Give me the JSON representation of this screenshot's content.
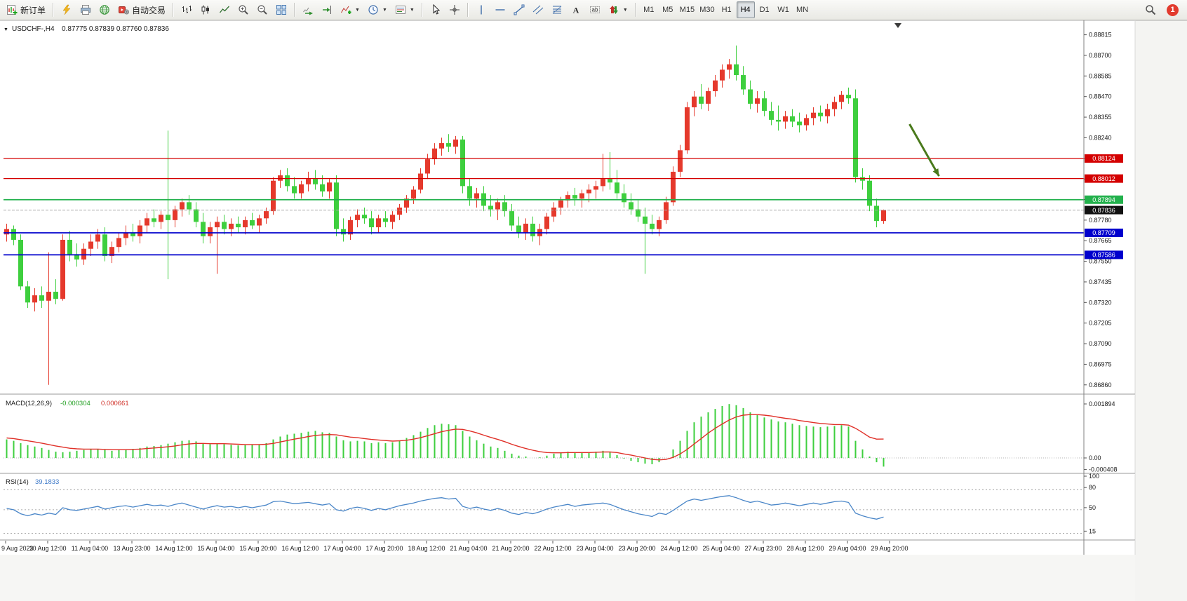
{
  "toolbar": {
    "new_order_label": "新订单",
    "autotrading_label": "自动交易",
    "timeframes": [
      "M1",
      "M5",
      "M15",
      "M30",
      "H1",
      "H4",
      "D1",
      "W1",
      "MN"
    ],
    "active_timeframe": "H4",
    "notification_count": "1",
    "icons": [
      "new-order",
      "metaeditor",
      "print",
      "refresh",
      "autotrading",
      "bar-chart-mode",
      "candlestick-mode",
      "line-chart-mode",
      "zoom-in",
      "zoom-out",
      "tile-windows",
      "auto-scroll",
      "chart-shift",
      "indicators",
      "periods",
      "templates",
      "cursor",
      "crosshair",
      "vertical-line",
      "horizontal-line",
      "trendline",
      "channel",
      "fibonacci",
      "text",
      "text-label",
      "arrows",
      "search",
      "notification"
    ]
  },
  "chart_data": {
    "type": "candlestick",
    "title": "USDCHF-,H4",
    "ohlc_display": "0.87775 0.87839 0.87760 0.87836",
    "current_price": "0.87836",
    "colors": {
      "bull": "#e5392c",
      "bear": "#3ecf3e",
      "macd_histogram": "#3ecf3e",
      "macd_signal": "#e03028",
      "rsi_line": "#4a86c8",
      "resistance": "#d40000",
      "support_green": "#22b14c",
      "support_blue": "#0000cd"
    },
    "price_range": [
      0.8682,
      0.8888
    ],
    "price_ticks": [
      "0.88815",
      "0.88700",
      "0.88585",
      "0.88470",
      "0.88355",
      "0.88240",
      "0.88125",
      "0.88010",
      "0.87895",
      "0.87780",
      "0.87665",
      "0.87550",
      "0.87435",
      "0.87320",
      "0.87205",
      "0.87090",
      "0.86975",
      "0.86860"
    ],
    "hlines": [
      {
        "price": 0.88124,
        "label": "0.88124",
        "color": "#d40000",
        "width": 1.2
      },
      {
        "price": 0.88012,
        "label": "0.88012",
        "color": "#d40000",
        "width": 1.2
      },
      {
        "price": 0.87894,
        "label": "0.87894",
        "color": "#22b14c",
        "width": 1.8
      },
      {
        "price": 0.87709,
        "label": "0.87709",
        "color": "#0000cd",
        "width": 1.8
      },
      {
        "price": 0.87586,
        "label": "0.87586",
        "color": "#0000cd",
        "width": 1.8
      }
    ],
    "label_every": 6,
    "time_labels": [
      "9 Aug 2023",
      "10 Aug 12:00",
      "11 Aug 04:00",
      "13 Aug 23:00",
      "14 Aug 12:00",
      "15 Aug 04:00",
      "15 Aug 20:00",
      "16 Aug 12:00",
      "17 Aug 04:00",
      "17 Aug 20:00",
      "18 Aug 12:00",
      "21 Aug 04:00",
      "21 Aug 20:00",
      "22 Aug 12:00",
      "23 Aug 04:00",
      "23 Aug 20:00",
      "24 Aug 12:00",
      "25 Aug 04:00",
      "27 Aug 23:00",
      "28 Aug 12:00",
      "29 Aug 04:00",
      "29 Aug 20:00"
    ],
    "candles": [
      [
        0.877,
        0.8776,
        0.8766,
        0.8773
      ],
      [
        0.8773,
        0.8775,
        0.8764,
        0.8767
      ],
      [
        0.8767,
        0.877,
        0.8739,
        0.8741
      ],
      [
        0.8741,
        0.8744,
        0.8729,
        0.8732
      ],
      [
        0.8732,
        0.874,
        0.8727,
        0.8736
      ],
      [
        0.8736,
        0.8741,
        0.8729,
        0.8733
      ],
      [
        0.8733,
        0.876,
        0.8686,
        0.8738
      ],
      [
        0.8738,
        0.8745,
        0.8731,
        0.8734
      ],
      [
        0.8734,
        0.877,
        0.8733,
        0.8767
      ],
      [
        0.8767,
        0.8772,
        0.8755,
        0.8759
      ],
      [
        0.8759,
        0.8765,
        0.8752,
        0.8756
      ],
      [
        0.8756,
        0.8765,
        0.8753,
        0.8762
      ],
      [
        0.8762,
        0.877,
        0.8758,
        0.8766
      ],
      [
        0.8766,
        0.8773,
        0.8762,
        0.877
      ],
      [
        0.877,
        0.8774,
        0.8755,
        0.8758
      ],
      [
        0.8758,
        0.8766,
        0.8754,
        0.8763
      ],
      [
        0.8763,
        0.8771,
        0.876,
        0.8768
      ],
      [
        0.8768,
        0.8775,
        0.8764,
        0.8771
      ],
      [
        0.8771,
        0.8776,
        0.8766,
        0.8769
      ],
      [
        0.8769,
        0.8778,
        0.8765,
        0.8775
      ],
      [
        0.8775,
        0.8782,
        0.8771,
        0.8779
      ],
      [
        0.8779,
        0.8784,
        0.8774,
        0.8777
      ],
      [
        0.8777,
        0.8783,
        0.8773,
        0.8781
      ],
      [
        0.8781,
        0.8828,
        0.8745,
        0.8778
      ],
      [
        0.8778,
        0.8786,
        0.8774,
        0.8784
      ],
      [
        0.8784,
        0.879,
        0.878,
        0.8788
      ],
      [
        0.8788,
        0.8792,
        0.8781,
        0.8784
      ],
      [
        0.8784,
        0.8788,
        0.8774,
        0.8777
      ],
      [
        0.8777,
        0.8782,
        0.8765,
        0.8769
      ],
      [
        0.8769,
        0.8777,
        0.8765,
        0.8774
      ],
      [
        0.8774,
        0.878,
        0.8748,
        0.8777
      ],
      [
        0.8777,
        0.8781,
        0.877,
        0.8773
      ],
      [
        0.8773,
        0.8779,
        0.8769,
        0.8776
      ],
      [
        0.8776,
        0.878,
        0.8771,
        0.8774
      ],
      [
        0.8774,
        0.878,
        0.877,
        0.8778
      ],
      [
        0.8778,
        0.8782,
        0.8773,
        0.8775
      ],
      [
        0.8775,
        0.8781,
        0.8771,
        0.8779
      ],
      [
        0.8779,
        0.8785,
        0.8776,
        0.8783
      ],
      [
        0.8783,
        0.8802,
        0.8781,
        0.88
      ],
      [
        0.88,
        0.8806,
        0.8796,
        0.8803
      ],
      [
        0.8803,
        0.8807,
        0.8794,
        0.8797
      ],
      [
        0.8797,
        0.8802,
        0.879,
        0.8793
      ],
      [
        0.8793,
        0.88,
        0.879,
        0.8798
      ],
      [
        0.8798,
        0.8805,
        0.8794,
        0.8801
      ],
      [
        0.8801,
        0.8806,
        0.8795,
        0.8798
      ],
      [
        0.8798,
        0.8803,
        0.8791,
        0.8794
      ],
      [
        0.8794,
        0.8801,
        0.879,
        0.8799
      ],
      [
        0.8799,
        0.8803,
        0.8769,
        0.8773
      ],
      [
        0.8773,
        0.8779,
        0.8766,
        0.877
      ],
      [
        0.877,
        0.878,
        0.8767,
        0.8778
      ],
      [
        0.8778,
        0.8784,
        0.8774,
        0.8781
      ],
      [
        0.8781,
        0.8785,
        0.8776,
        0.8779
      ],
      [
        0.8779,
        0.8783,
        0.877,
        0.8774
      ],
      [
        0.8774,
        0.8781,
        0.8771,
        0.8779
      ],
      [
        0.8779,
        0.8783,
        0.8774,
        0.8777
      ],
      [
        0.8777,
        0.8783,
        0.8773,
        0.8781
      ],
      [
        0.8781,
        0.8787,
        0.8778,
        0.8785
      ],
      [
        0.8785,
        0.8792,
        0.8782,
        0.879
      ],
      [
        0.879,
        0.8797,
        0.8787,
        0.8795
      ],
      [
        0.8795,
        0.8807,
        0.8793,
        0.8804
      ],
      [
        0.8804,
        0.8815,
        0.8801,
        0.8812
      ],
      [
        0.8812,
        0.8821,
        0.8809,
        0.8818
      ],
      [
        0.8818,
        0.8824,
        0.8814,
        0.8821
      ],
      [
        0.8821,
        0.8826,
        0.8816,
        0.8819
      ],
      [
        0.8819,
        0.8825,
        0.8815,
        0.8823
      ],
      [
        0.8823,
        0.8825,
        0.8793,
        0.8797
      ],
      [
        0.8797,
        0.8801,
        0.8786,
        0.879
      ],
      [
        0.879,
        0.8796,
        0.8785,
        0.8793
      ],
      [
        0.8793,
        0.8797,
        0.8783,
        0.8786
      ],
      [
        0.8786,
        0.8792,
        0.878,
        0.8784
      ],
      [
        0.8784,
        0.879,
        0.8778,
        0.8788
      ],
      [
        0.8788,
        0.8792,
        0.878,
        0.8783
      ],
      [
        0.8783,
        0.8787,
        0.8772,
        0.8775
      ],
      [
        0.8775,
        0.878,
        0.8768,
        0.8771
      ],
      [
        0.8771,
        0.8779,
        0.8767,
        0.8776
      ],
      [
        0.8776,
        0.878,
        0.8766,
        0.8769
      ],
      [
        0.8769,
        0.8776,
        0.8764,
        0.8773
      ],
      [
        0.8773,
        0.8782,
        0.877,
        0.878
      ],
      [
        0.878,
        0.8788,
        0.8777,
        0.8785
      ],
      [
        0.8785,
        0.8791,
        0.8781,
        0.8789
      ],
      [
        0.8789,
        0.8794,
        0.8785,
        0.8792
      ],
      [
        0.8792,
        0.8796,
        0.8786,
        0.879
      ],
      [
        0.879,
        0.8795,
        0.8785,
        0.8793
      ],
      [
        0.8793,
        0.8798,
        0.8788,
        0.8795
      ],
      [
        0.8795,
        0.88,
        0.879,
        0.8797
      ],
      [
        0.8797,
        0.8815,
        0.8794,
        0.8801
      ],
      [
        0.8801,
        0.8816,
        0.8795,
        0.8799
      ],
      [
        0.8799,
        0.8806,
        0.879,
        0.8793
      ],
      [
        0.8793,
        0.8798,
        0.8785,
        0.8788
      ],
      [
        0.8788,
        0.8793,
        0.8781,
        0.8784
      ],
      [
        0.8784,
        0.8789,
        0.8777,
        0.878
      ],
      [
        0.878,
        0.8785,
        0.8748,
        0.8776
      ],
      [
        0.8776,
        0.8781,
        0.877,
        0.8773
      ],
      [
        0.8773,
        0.878,
        0.8769,
        0.8778
      ],
      [
        0.8778,
        0.8791,
        0.8776,
        0.8788
      ],
      [
        0.8788,
        0.8808,
        0.8786,
        0.8805
      ],
      [
        0.8805,
        0.882,
        0.8802,
        0.8817
      ],
      [
        0.8817,
        0.8844,
        0.8815,
        0.8841
      ],
      [
        0.8841,
        0.885,
        0.8836,
        0.8847
      ],
      [
        0.8847,
        0.8854,
        0.884,
        0.8843
      ],
      [
        0.8843,
        0.8852,
        0.8839,
        0.885
      ],
      [
        0.885,
        0.8859,
        0.8847,
        0.8856
      ],
      [
        0.8856,
        0.8865,
        0.8852,
        0.8862
      ],
      [
        0.8862,
        0.8868,
        0.8857,
        0.8865
      ],
      [
        0.8865,
        0.88755,
        0.8856,
        0.8859
      ],
      [
        0.8859,
        0.8864,
        0.8848,
        0.8851
      ],
      [
        0.8851,
        0.8856,
        0.884,
        0.8843
      ],
      [
        0.8843,
        0.885,
        0.8838,
        0.8846
      ],
      [
        0.8846,
        0.885,
        0.8836,
        0.8839
      ],
      [
        0.8839,
        0.8844,
        0.8831,
        0.8834
      ],
      [
        0.8834,
        0.8842,
        0.8828,
        0.8833
      ],
      [
        0.8833,
        0.8839,
        0.8829,
        0.8836
      ],
      [
        0.8836,
        0.884,
        0.883,
        0.8833
      ],
      [
        0.8833,
        0.8838,
        0.8827,
        0.8831
      ],
      [
        0.8831,
        0.8837,
        0.8828,
        0.8835
      ],
      [
        0.8835,
        0.8841,
        0.8831,
        0.8838
      ],
      [
        0.8838,
        0.8842,
        0.8833,
        0.8836
      ],
      [
        0.8836,
        0.8843,
        0.8832,
        0.884
      ],
      [
        0.884,
        0.8847,
        0.8836,
        0.8844
      ],
      [
        0.8844,
        0.885,
        0.884,
        0.8848
      ],
      [
        0.8848,
        0.8852,
        0.8843,
        0.8846
      ],
      [
        0.8846,
        0.8851,
        0.8799,
        0.8802
      ],
      [
        0.8802,
        0.8807,
        0.8795,
        0.88
      ],
      [
        0.88,
        0.8803,
        0.8783,
        0.8786
      ],
      [
        0.8786,
        0.879,
        0.8774,
        0.87775
      ],
      [
        0.87775,
        0.87839,
        0.8776,
        0.87836
      ]
    ],
    "macd": {
      "name": "MACD(12,26,9)",
      "value_main": "-0.000304",
      "value_signal": "0.000661",
      "axis_labels": [
        "0.001894",
        "0.00",
        "-0.000408"
      ],
      "axis_values": [
        0.001894,
        0,
        -0.000408
      ],
      "histogram": [
        0.00065,
        0.0006,
        0.00052,
        0.00045,
        0.0004,
        0.00035,
        0.00028,
        0.00022,
        0.0002,
        0.00022,
        0.00025,
        0.00028,
        0.0003,
        0.00032,
        0.00028,
        0.00025,
        0.00028,
        0.0003,
        0.00032,
        0.00035,
        0.0004,
        0.00042,
        0.00045,
        0.0005,
        0.00055,
        0.0006,
        0.00062,
        0.00058,
        0.00052,
        0.00048,
        0.0005,
        0.00048,
        0.00046,
        0.00044,
        0.00045,
        0.00046,
        0.00048,
        0.00052,
        0.00065,
        0.00075,
        0.00082,
        0.00085,
        0.00088,
        0.00092,
        0.00095,
        0.0009,
        0.00088,
        0.00075,
        0.00062,
        0.00058,
        0.0006,
        0.00058,
        0.00052,
        0.00055,
        0.00052,
        0.00055,
        0.00062,
        0.0007,
        0.0008,
        0.00092,
        0.00105,
        0.00115,
        0.0012,
        0.00118,
        0.00115,
        0.00095,
        0.00075,
        0.00062,
        0.0005,
        0.0004,
        0.00035,
        0.00025,
        0.00015,
        8e-05,
        5e-05,
        0.0,
        2e-05,
        8e-05,
        0.00015,
        0.0002,
        0.00022,
        0.0002,
        0.00018,
        0.0002,
        0.00022,
        0.00025,
        0.0002,
        0.0001,
        -2e-05,
        -0.0001,
        -0.00015,
        -0.0002,
        -0.00022,
        -0.00015,
        0.0,
        0.0003,
        0.0006,
        0.00095,
        0.00125,
        0.00145,
        0.0016,
        0.00172,
        0.00182,
        0.00189,
        0.00185,
        0.00175,
        0.0016,
        0.0015,
        0.00142,
        0.00135,
        0.00128,
        0.00125,
        0.0012,
        0.00115,
        0.00112,
        0.0011,
        0.00108,
        0.0011,
        0.00112,
        0.00115,
        0.0011,
        0.0006,
        0.0003,
        5e-05,
        -0.00015,
        -0.000304
      ],
      "signal": [
        0.0007,
        0.00068,
        0.00064,
        0.0006,
        0.00056,
        0.00052,
        0.00047,
        0.00042,
        0.00038,
        0.00034,
        0.00032,
        0.00031,
        0.00031,
        0.00031,
        0.0003,
        0.00029,
        0.00029,
        0.00029,
        0.0003,
        0.00031,
        0.00033,
        0.00035,
        0.00037,
        0.00039,
        0.00042,
        0.00046,
        0.00049,
        0.00051,
        0.00051,
        0.0005,
        0.0005,
        0.0005,
        0.00049,
        0.00048,
        0.00047,
        0.00047,
        0.00047,
        0.00048,
        0.00051,
        0.00056,
        0.00061,
        0.00066,
        0.0007,
        0.00075,
        0.00079,
        0.00081,
        0.00082,
        0.00081,
        0.00077,
        0.00073,
        0.00071,
        0.00068,
        0.00065,
        0.00063,
        0.00061,
        0.00059,
        0.0006,
        0.00062,
        0.00066,
        0.00071,
        0.00078,
        0.00085,
        0.00092,
        0.00097,
        0.00101,
        0.001,
        0.00095,
        0.00088,
        0.0008,
        0.00072,
        0.00065,
        0.00057,
        0.00048,
        0.0004,
        0.00033,
        0.00027,
        0.00022,
        0.00019,
        0.00018,
        0.00018,
        0.00019,
        0.00019,
        0.00019,
        0.00019,
        0.0002,
        0.00021,
        0.00021,
        0.00019,
        0.00014,
        0.0001,
        5e-05,
        0.0,
        -5e-05,
        -7e-05,
        -5e-05,
        2e-05,
        0.00014,
        0.0003,
        0.00049,
        0.00068,
        0.00087,
        0.00104,
        0.00119,
        0.00133,
        0.00144,
        0.0015,
        0.00152,
        0.00152,
        0.0015,
        0.00147,
        0.00143,
        0.00139,
        0.00136,
        0.00131,
        0.00128,
        0.00124,
        0.00121,
        0.00119,
        0.00117,
        0.00117,
        0.00115,
        0.00104,
        0.00089,
        0.00073,
        0.00066,
        0.000661
      ]
    },
    "rsi": {
      "name": "RSI(14)",
      "value": "39.1833",
      "levels": [
        80,
        50,
        15
      ],
      "axis_labels": [
        "100",
        "80",
        "50",
        "15"
      ],
      "axis_values": [
        100,
        80,
        50,
        15
      ],
      "series": [
        52,
        50,
        44,
        41,
        44,
        42,
        45,
        43,
        53,
        50,
        49,
        51,
        53,
        55,
        51,
        53,
        55,
        56,
        54,
        56,
        58,
        56,
        57,
        55,
        58,
        60,
        57,
        54,
        51,
        54,
        56,
        54,
        55,
        53,
        55,
        53,
        55,
        57,
        62,
        63,
        61,
        59,
        60,
        61,
        59,
        57,
        59,
        50,
        48,
        52,
        54,
        52,
        49,
        52,
        50,
        53,
        56,
        58,
        60,
        63,
        65,
        67,
        68,
        66,
        67,
        55,
        52,
        54,
        51,
        49,
        52,
        49,
        45,
        43,
        46,
        44,
        47,
        51,
        54,
        56,
        58,
        55,
        57,
        58,
        59,
        60,
        58,
        54,
        50,
        47,
        44,
        42,
        40,
        45,
        43,
        49,
        56,
        63,
        66,
        64,
        66,
        68,
        70,
        71,
        68,
        64,
        61,
        63,
        60,
        57,
        58,
        60,
        58,
        56,
        58,
        60,
        58,
        60,
        62,
        63,
        61,
        45,
        41,
        38,
        36,
        39.18
      ]
    },
    "annotation_arrow": {
      "from_bar": 128.7,
      "from_price": 0.88316,
      "to_bar": 132.9,
      "to_price": 0.88026,
      "color": "#4a7a1c"
    }
  }
}
